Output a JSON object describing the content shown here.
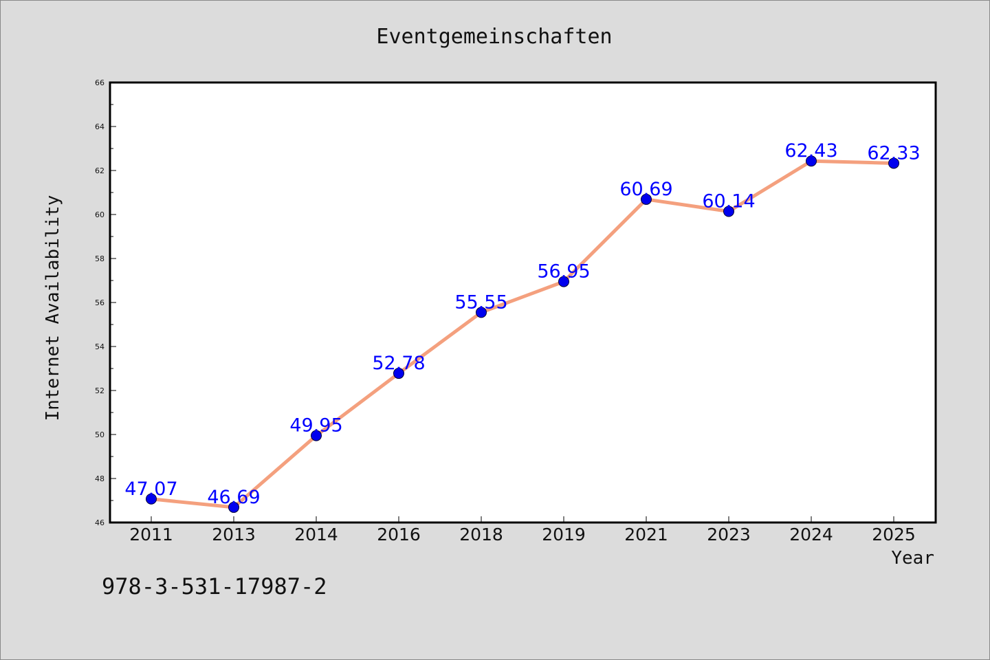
{
  "chart_data": {
    "type": "line",
    "title": "Eventgemeinschaften",
    "xlabel": "Year",
    "ylabel": "Internet Availability",
    "categories": [
      "2011",
      "2013",
      "2014",
      "2016",
      "2018",
      "2019",
      "2021",
      "2023",
      "2024",
      "2025"
    ],
    "values": [
      47.07,
      46.69,
      49.95,
      52.78,
      55.55,
      56.95,
      60.69,
      60.14,
      62.43,
      62.33
    ],
    "data_labels": [
      "47.07",
      "46.69",
      "49.95",
      "52.78",
      "55.55",
      "56.95",
      "60.69",
      "60.14",
      "62.43",
      "62.33"
    ],
    "ylim": [
      46,
      66
    ],
    "yticks": [
      46,
      48,
      50,
      52,
      54,
      56,
      58,
      60,
      62,
      64,
      66
    ],
    "grid": false,
    "legend": "none",
    "line_color": "#f4a07e",
    "marker_color": "#0000ee",
    "label_color": "#0000ff",
    "background_color": "#dcdcdc",
    "plot_background_color": "#ffffff"
  },
  "annotation": "978-3-531-17987-2"
}
